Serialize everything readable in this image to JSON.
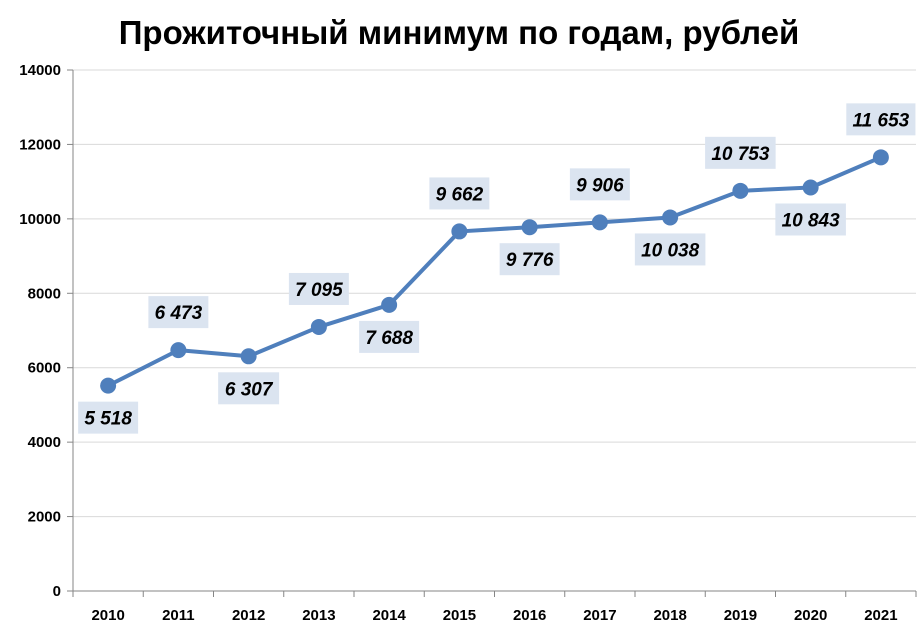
{
  "chart_data": {
    "type": "line",
    "title": "Прожиточный минимум по годам, рублей",
    "xlabel": "",
    "ylabel": "",
    "categories": [
      "2010",
      "2011",
      "2012",
      "2013",
      "2014",
      "2015",
      "2016",
      "2017",
      "2018",
      "2019",
      "2020",
      "2021"
    ],
    "series": [
      {
        "values": [
          5518,
          6473,
          6307,
          7095,
          7688,
          9662,
          9776,
          9906,
          10038,
          10753,
          10843,
          11653
        ],
        "data_labels": [
          "5 518",
          "6 473",
          "6 307",
          "7 095",
          "7 688",
          "9 662",
          "9 776",
          "9 906",
          "10 038",
          "10 753",
          "10 843",
          "11 653"
        ],
        "color": "#4f7fbc"
      }
    ],
    "ylim": [
      0,
      14000
    ],
    "yticks": [
      "0",
      "2000",
      "4000",
      "6000",
      "8000",
      "10000",
      "12000",
      "14000"
    ],
    "grid": true,
    "gridline_color": "#d9d9d9",
    "label_box_color": "#dbe4f0"
  }
}
